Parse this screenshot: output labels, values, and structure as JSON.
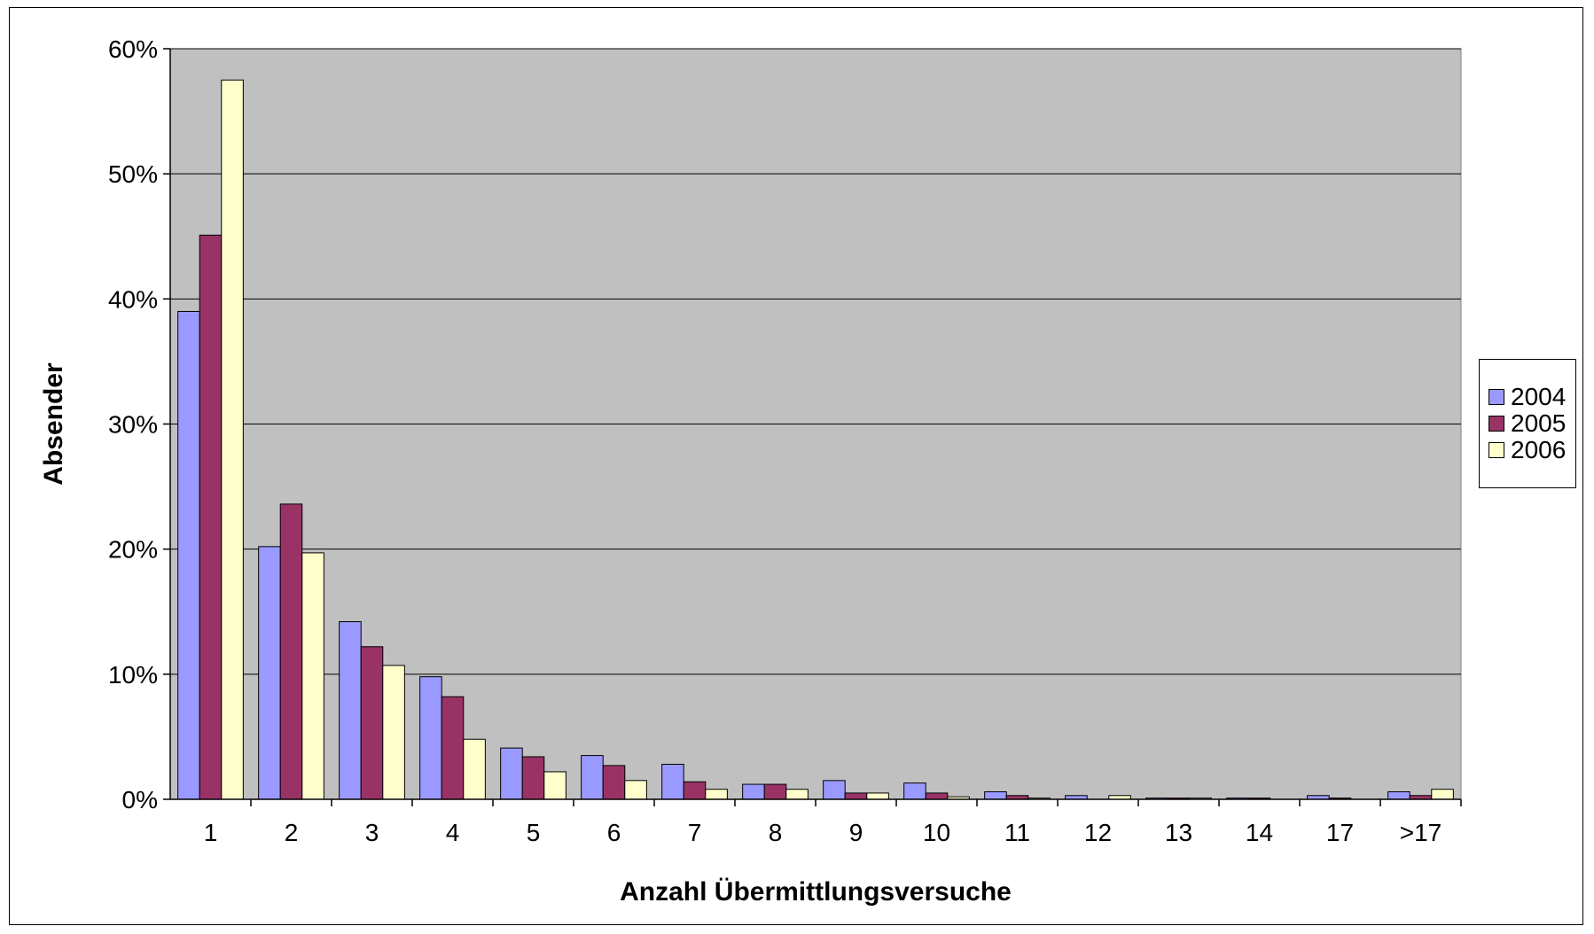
{
  "chart_data": {
    "type": "bar",
    "title": "",
    "xlabel": "Anzahl Übermittlungsversuche",
    "ylabel": "Absender",
    "categories": [
      "1",
      "2",
      "3",
      "4",
      "5",
      "6",
      "7",
      "8",
      "9",
      "10",
      "11",
      "12",
      "13",
      "14",
      "17",
      ">17"
    ],
    "series": [
      {
        "name": "2004",
        "color": "#9999ff",
        "values": [
          39.0,
          20.2,
          14.2,
          9.8,
          4.1,
          3.5,
          2.8,
          1.2,
          1.5,
          1.3,
          0.6,
          0.3,
          0.1,
          0.1,
          0.3,
          0.6
        ]
      },
      {
        "name": "2005",
        "color": "#993366",
        "values": [
          45.1,
          23.6,
          12.2,
          8.2,
          3.4,
          2.7,
          1.4,
          1.2,
          0.5,
          0.5,
          0.3,
          0.0,
          0.1,
          0.1,
          0.1,
          0.3
        ]
      },
      {
        "name": "2006",
        "color": "#ffffcc",
        "values": [
          57.5,
          19.7,
          10.7,
          4.8,
          2.2,
          1.5,
          0.8,
          0.8,
          0.5,
          0.2,
          0.1,
          0.3,
          0.1,
          0.0,
          0.0,
          0.8
        ]
      }
    ],
    "ylim": [
      0,
      60
    ],
    "yticks": [
      "0%",
      "10%",
      "20%",
      "30%",
      "40%",
      "50%",
      "60%"
    ],
    "grid": true,
    "plot_background": "#c0c0c0",
    "legend_position": "right"
  }
}
